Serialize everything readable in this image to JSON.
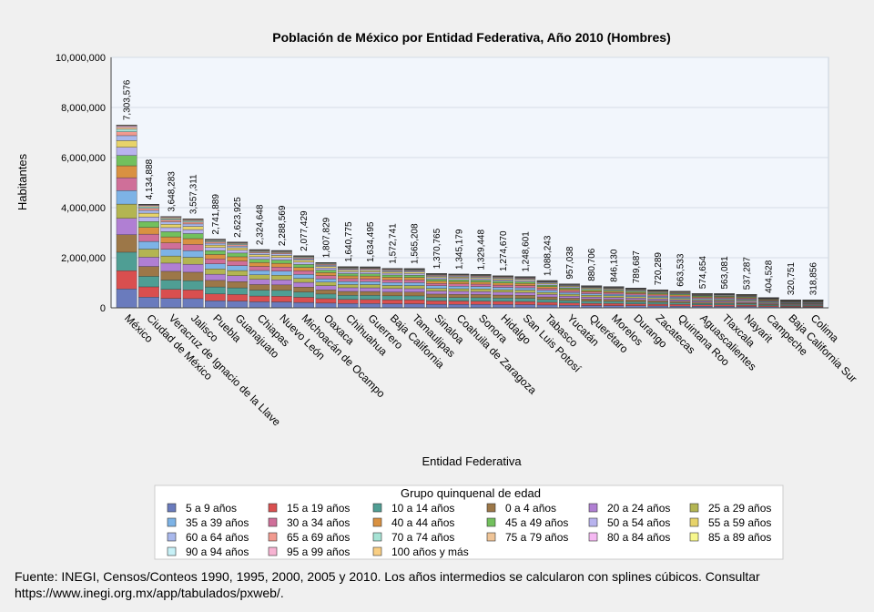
{
  "chart_data": {
    "type": "bar",
    "stacked": true,
    "title": "Población de México por Entidad Federativa, Año 2010 (Hombres)",
    "xlabel": "Entidad Federativa",
    "ylabel": "Habitantes",
    "ylim": [
      0,
      10000000
    ],
    "yticks": [
      "0",
      "2,000,000",
      "4,000,000",
      "6,000,000",
      "8,000,000",
      "10,000,000"
    ],
    "ytick_values": [
      0,
      2000000,
      4000000,
      6000000,
      8000000,
      10000000
    ],
    "grid": true,
    "categories": [
      "México",
      "Ciudad de México",
      "Veracruz de Ignacio de la Llave",
      "Jalisco",
      "Puebla",
      "Guanajuato",
      "Chiapas",
      "Nuevo León",
      "Michoacán de Ocampo",
      "Oaxaca",
      "Chihuahua",
      "Guerrero",
      "Baja California",
      "Tamaulipas",
      "Sinaloa",
      "Coahuila de Zaragoza",
      "Sonora",
      "Hidalgo",
      "San Luis Potosí",
      "Tabasco",
      "Yucatán",
      "Querétaro",
      "Morelos",
      "Durango",
      "Zacatecas",
      "Quintana Roo",
      "Aguascalientes",
      "Tlaxcala",
      "Nayarit",
      "Campeche",
      "Baja California Sur",
      "Colima"
    ],
    "totals": [
      7303576,
      4134888,
      3648283,
      3557311,
      2741889,
      2623925,
      2324648,
      2288569,
      2077429,
      1807829,
      1640775,
      1634495,
      1572741,
      1565208,
      1370765,
      1345179,
      1329448,
      1274670,
      1248601,
      1088243,
      957038,
      880706,
      846130,
      789687,
      720289,
      663533,
      574654,
      563081,
      537287,
      404528,
      320751,
      318856
    ],
    "total_labels": [
      "7,303,576",
      "4,134,888",
      "3,648,283",
      "3,557,311",
      "2,741,889",
      "2,623,925",
      "2,324,648",
      "2,288,569",
      "2,077,429",
      "1,807,829",
      "1,640,775",
      "1,634,495",
      "1,572,741",
      "1,565,208",
      "1,370,765",
      "1,345,179",
      "1,329,448",
      "1,274,670",
      "1,248,601",
      "1,088,243",
      "957,038",
      "880,706",
      "846,130",
      "789,687",
      "720,289",
      "663,533",
      "574,654",
      "563,081",
      "537,287",
      "404,528",
      "320,751",
      "318,856"
    ],
    "stack_order": [
      "5 a 9 años",
      "15 a 19 años",
      "10 a 14 años",
      "0 a 4 años",
      "20 a 24 años",
      "25 a 29 años",
      "35 a 39 años",
      "30 a 34 años",
      "40 a 44 años",
      "45 a 49 años",
      "50 a 54 años",
      "55 a 59 años",
      "60 a 64 años",
      "65 a 69 años",
      "70 a 74 años",
      "75 a 79 años",
      "80 a 84 años",
      "85 a 89 años",
      "90 a 94 años",
      "95 a 99 años",
      "100 años y más"
    ],
    "stack_shares": [
      0.106,
      0.102,
      0.104,
      0.098,
      0.092,
      0.08,
      0.076,
      0.072,
      0.067,
      0.058,
      0.046,
      0.037,
      0.028,
      0.021,
      0.015,
      0.011,
      0.007,
      0.004,
      0.0016,
      0.0004,
      0.0002
    ],
    "legend": {
      "title": "Grupo quinquenal de edad",
      "position": "bottom",
      "items": [
        {
          "name": "5 a 9 años",
          "color": "#6a7bbd"
        },
        {
          "name": "15 a 19 años",
          "color": "#d94f4f"
        },
        {
          "name": "10 a 14 años",
          "color": "#4f9e94"
        },
        {
          "name": "0 a 4 años",
          "color": "#9c7748"
        },
        {
          "name": "20 a 24 años",
          "color": "#b07fd3"
        },
        {
          "name": "25 a 29 años",
          "color": "#b3b552"
        },
        {
          "name": "35 a 39 años",
          "color": "#7db3e6"
        },
        {
          "name": "30 a 34 años",
          "color": "#cf6f99"
        },
        {
          "name": "40 a 44 años",
          "color": "#d99141"
        },
        {
          "name": "45 a 49 años",
          "color": "#72c05d"
        },
        {
          "name": "50 a 54 años",
          "color": "#b8b3ee"
        },
        {
          "name": "55 a 59 años",
          "color": "#e7d36a"
        },
        {
          "name": "60 a 64 años",
          "color": "#a9b8ec"
        },
        {
          "name": "65 a 69 años",
          "color": "#f19a8f"
        },
        {
          "name": "70 a 74 años",
          "color": "#a6e3d5"
        },
        {
          "name": "75 a 79 años",
          "color": "#efc497"
        },
        {
          "name": "80 a 84 años",
          "color": "#f5b8f2"
        },
        {
          "name": "85 a 89 años",
          "color": "#f7f78c"
        },
        {
          "name": "90 a 94 años",
          "color": "#c7f1f7"
        },
        {
          "name": "95 a 99 años",
          "color": "#f7b3d2"
        },
        {
          "name": "100 años y más",
          "color": "#f9cf84"
        }
      ]
    }
  },
  "footnote": "Fuente: INEGI, Censos/Conteos 1990, 1995, 2000, 2005 y 2010. Los años intermedios se calcularon con splines cúbicos. Consultar https://www.inegi.org.mx/app/tabulados/pxweb/."
}
